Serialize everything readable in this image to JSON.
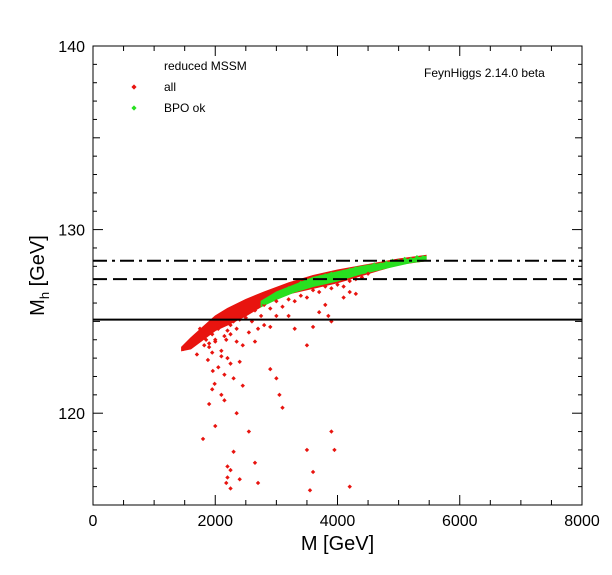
{
  "chart_data": {
    "type": "scatter",
    "title": "",
    "xlabel": "M [GeV]",
    "ylabel_main": "M",
    "ylabel_sub": "h",
    "ylabel_unit": "[GeV]",
    "xlim": [
      0,
      8000
    ],
    "ylim": [
      115,
      140
    ],
    "x_ticks": [
      0,
      2000,
      4000,
      6000,
      8000
    ],
    "y_ticks": [
      120,
      130,
      140
    ],
    "legend": {
      "placement": "top-left",
      "title": "reduced MSSM",
      "entries": [
        {
          "label": "all",
          "color": "#e8140f"
        },
        {
          "label": "BPO ok",
          "color": "#28e020"
        }
      ]
    },
    "annotation": "FeynHiggs 2.14.0 beta",
    "reference_lines": [
      {
        "name": "solid",
        "y": 125.1,
        "style": "solid"
      },
      {
        "name": "dashed",
        "y": 127.3,
        "style": "dashed"
      },
      {
        "name": "dashdot",
        "y": 128.3,
        "style": "dashdot"
      }
    ],
    "bands": [
      {
        "series": "all",
        "color": "#e8140f",
        "upper": [
          [
            1450,
            123.6
          ],
          [
            1600,
            124.1
          ],
          [
            1800,
            124.7
          ],
          [
            2000,
            125.3
          ],
          [
            2200,
            125.7
          ],
          [
            2500,
            126.2
          ],
          [
            2800,
            126.6
          ],
          [
            3200,
            127.1
          ],
          [
            3600,
            127.5
          ],
          [
            4000,
            127.8
          ],
          [
            4500,
            128.1
          ],
          [
            5000,
            128.4
          ],
          [
            5450,
            128.6
          ]
        ],
        "lower": [
          [
            5450,
            128.3
          ],
          [
            5000,
            128.1
          ],
          [
            4500,
            127.6
          ],
          [
            4000,
            127.1
          ],
          [
            3600,
            126.8
          ],
          [
            3200,
            126.5
          ],
          [
            2800,
            125.9
          ],
          [
            2500,
            125.3
          ],
          [
            2200,
            124.8
          ],
          [
            2000,
            124.5
          ],
          [
            1800,
            124.0
          ],
          [
            1600,
            123.5
          ],
          [
            1450,
            123.4
          ]
        ]
      },
      {
        "series": "BPO ok",
        "color": "#28e020",
        "upper": [
          [
            2750,
            126.1
          ],
          [
            3000,
            126.6
          ],
          [
            3300,
            127.0
          ],
          [
            3600,
            127.4
          ],
          [
            4000,
            127.7
          ],
          [
            4400,
            128.0
          ],
          [
            4800,
            128.2
          ],
          [
            5200,
            128.4
          ],
          [
            5450,
            128.55
          ]
        ],
        "lower": [
          [
            5450,
            128.3
          ],
          [
            5200,
            128.2
          ],
          [
            4800,
            127.9
          ],
          [
            4400,
            127.6
          ],
          [
            4000,
            127.2
          ],
          [
            3600,
            126.9
          ],
          [
            3300,
            126.6
          ],
          [
            3000,
            126.2
          ],
          [
            2750,
            125.8
          ]
        ]
      }
    ],
    "series": [
      {
        "name": "all",
        "color": "#e8140f",
        "points": [
          [
            1480,
            123.5
          ],
          [
            1600,
            123.9
          ],
          [
            1720,
            124.2
          ],
          [
            1800,
            124.5
          ],
          [
            1850,
            124.0
          ],
          [
            1900,
            123.6
          ],
          [
            1950,
            123.3
          ],
          [
            2000,
            124.0
          ],
          [
            2050,
            124.6
          ],
          [
            2100,
            124.9
          ],
          [
            2150,
            124.2
          ],
          [
            2200,
            124.5
          ],
          [
            2250,
            124.8
          ],
          [
            2300,
            125.0
          ],
          [
            2350,
            124.6
          ],
          [
            2400,
            125.1
          ],
          [
            2450,
            125.4
          ],
          [
            2500,
            125.2
          ],
          [
            2550,
            125.5
          ],
          [
            2600,
            125.0
          ],
          [
            2650,
            125.6
          ],
          [
            2700,
            125.8
          ],
          [
            2750,
            125.3
          ],
          [
            2800,
            125.9
          ],
          [
            2900,
            125.7
          ],
          [
            3000,
            126.1
          ],
          [
            3100,
            125.8
          ],
          [
            3200,
            126.2
          ],
          [
            3300,
            126.1
          ],
          [
            3400,
            126.4
          ],
          [
            3500,
            126.3
          ],
          [
            3600,
            126.7
          ],
          [
            3700,
            126.6
          ],
          [
            3800,
            126.9
          ],
          [
            3900,
            126.8
          ],
          [
            4000,
            127.0
          ],
          [
            4100,
            126.9
          ],
          [
            4200,
            127.2
          ],
          [
            4300,
            127.3
          ],
          [
            4400,
            127.4
          ],
          [
            4500,
            127.6
          ],
          [
            1700,
            123.2
          ],
          [
            1750,
            124.6
          ],
          [
            1820,
            123.7
          ],
          [
            1880,
            122.9
          ],
          [
            1900,
            123.8
          ],
          [
            1960,
            122.3
          ],
          [
            1990,
            121.6
          ],
          [
            2050,
            122.5
          ],
          [
            2100,
            123.4
          ],
          [
            2150,
            122.1
          ],
          [
            2200,
            123.0
          ],
          [
            2250,
            122.7
          ],
          [
            2300,
            121.9
          ],
          [
            2400,
            122.8
          ],
          [
            2450,
            123.7
          ],
          [
            2550,
            124.4
          ],
          [
            2650,
            123.9
          ],
          [
            2700,
            124.6
          ],
          [
            2800,
            124.8
          ],
          [
            2900,
            124.7
          ],
          [
            3000,
            125.3
          ],
          [
            3200,
            125.3
          ],
          [
            3300,
            124.6
          ],
          [
            3500,
            123.7
          ],
          [
            3600,
            124.7
          ],
          [
            3700,
            125.5
          ],
          [
            3800,
            125.9
          ],
          [
            3850,
            125.3
          ],
          [
            3900,
            125.0
          ],
          [
            4100,
            126.3
          ],
          [
            4200,
            126.6
          ],
          [
            4300,
            126.5
          ],
          [
            2000,
            123.9
          ],
          [
            2100,
            123.1
          ],
          [
            2180,
            124.0
          ],
          [
            2250,
            124.3
          ],
          [
            2350,
            123.9
          ],
          [
            1950,
            124.3
          ],
          [
            1800,
            118.6
          ],
          [
            1900,
            120.5
          ],
          [
            1950,
            121.3
          ],
          [
            2000,
            119.3
          ],
          [
            2100,
            121.0
          ],
          [
            2150,
            120.7
          ],
          [
            2200,
            117.1
          ],
          [
            2250,
            116.9
          ],
          [
            2300,
            117.9
          ],
          [
            2350,
            120.0
          ],
          [
            2400,
            116.4
          ],
          [
            2450,
            121.5
          ],
          [
            2550,
            119.0
          ],
          [
            2650,
            117.3
          ],
          [
            2700,
            116.2
          ],
          [
            2900,
            122.4
          ],
          [
            3000,
            121.9
          ],
          [
            3050,
            121.0
          ],
          [
            3100,
            120.3
          ],
          [
            3500,
            118.0
          ],
          [
            3550,
            115.8
          ],
          [
            3600,
            116.8
          ],
          [
            3900,
            119.0
          ],
          [
            3950,
            118.0
          ],
          [
            4200,
            116.0
          ],
          [
            2200,
            116.5
          ],
          [
            2250,
            115.9
          ],
          [
            2180,
            116.2
          ]
        ]
      },
      {
        "name": "BPO ok",
        "color": "#28e020",
        "points": [
          [
            2800,
            126.0
          ],
          [
            2900,
            126.3
          ],
          [
            3000,
            126.4
          ],
          [
            3100,
            126.6
          ],
          [
            3200,
            126.8
          ],
          [
            3300,
            126.8
          ],
          [
            3400,
            127.1
          ],
          [
            3500,
            127.2
          ],
          [
            3600,
            127.3
          ],
          [
            3700,
            127.4
          ],
          [
            3800,
            127.5
          ],
          [
            3900,
            127.6
          ],
          [
            4000,
            127.6
          ],
          [
            4100,
            127.7
          ],
          [
            4200,
            127.8
          ],
          [
            4300,
            127.9
          ],
          [
            4400,
            127.9
          ],
          [
            4500,
            128.0
          ],
          [
            4600,
            128.1
          ],
          [
            4700,
            128.1
          ],
          [
            4800,
            128.2
          ],
          [
            4900,
            128.3
          ],
          [
            5000,
            128.3
          ],
          [
            5100,
            128.4
          ],
          [
            5200,
            128.4
          ],
          [
            5300,
            128.5
          ],
          [
            5400,
            128.5
          ]
        ]
      }
    ]
  }
}
